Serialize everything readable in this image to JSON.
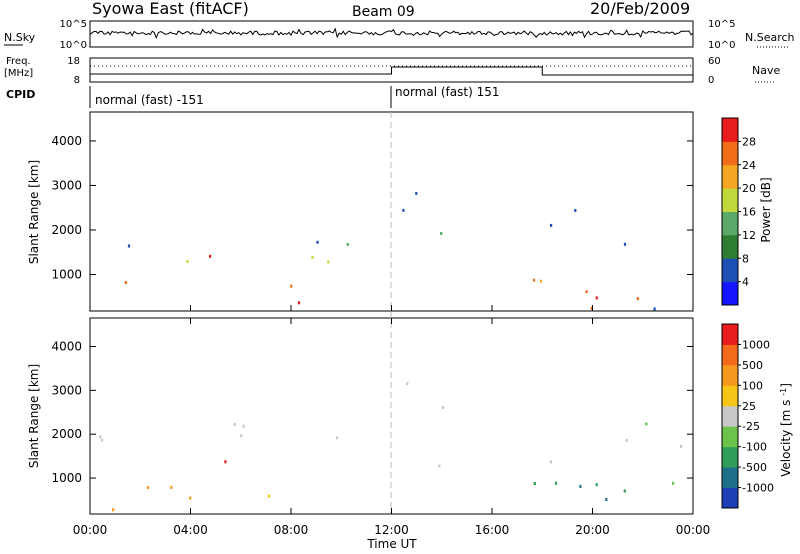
{
  "header": {
    "title": "Syowa East (fitACF)",
    "beam": "Beam 09",
    "date": "20/Feb/2009"
  },
  "panels": {
    "nsky": {
      "label": "N.Sky",
      "right_label": "N.Search",
      "ticks_left": [
        "10^5",
        "10^0"
      ],
      "ticks_right": [
        "10^5",
        "10^0"
      ]
    },
    "freq": {
      "label_line1": "Freq.",
      "label_line2": "[MHz]",
      "right_label": "Nave",
      "ticks_left": [
        "18",
        "8"
      ],
      "ticks_right": [
        "60",
        "0"
      ]
    },
    "cpid": {
      "label": "CPID",
      "segments": [
        {
          "text": "normal (fast) -151"
        },
        {
          "text": "normal (fast) 151"
        }
      ]
    }
  },
  "xaxis": {
    "label": "Time UT",
    "ticks": [
      "00:00",
      "04:00",
      "08:00",
      "12:00",
      "16:00",
      "20:00",
      "00:00"
    ]
  },
  "chart_data": [
    {
      "type": "heatmap",
      "title": "Power",
      "ylabel": "Slant Range [km]",
      "yticks": [
        1000,
        2000,
        3000,
        4000
      ],
      "ylim": [
        180,
        4650
      ],
      "xlim_hours": [
        0,
        24
      ],
      "colorbar": {
        "label": "Power [dB]",
        "ticks": [
          "4",
          "8",
          "12",
          "16",
          "20",
          "24",
          "28"
        ],
        "colors": [
          "#1414ff",
          "#1e4fb4",
          "#2e7d32",
          "#5aa86a",
          "#c0d83a",
          "#f5a623",
          "#f26d1a",
          "#e81c1c"
        ]
      },
      "scatter_regions": [
        {
          "t": [
            0.2,
            2.2
          ],
          "r": [
            1400,
            2300
          ],
          "color": 1,
          "density": 0.4
        },
        {
          "t": [
            0.0,
            8.0
          ],
          "r": [
            500,
            900
          ],
          "color": 6,
          "density": 0.7
        },
        {
          "t": [
            0.0,
            10.0
          ],
          "r": [
            250,
            450
          ],
          "color": 7,
          "density": 0.6
        },
        {
          "t": [
            1.5,
            11.5
          ],
          "r": [
            1200,
            1800
          ],
          "color": 4,
          "density": 0.6
        },
        {
          "t": [
            4.0,
            6.0
          ],
          "r": [
            800,
            1500
          ],
          "color": 7,
          "density": 0.5
        },
        {
          "t": [
            7.0,
            11.8
          ],
          "r": [
            1500,
            2100
          ],
          "color": 1,
          "density": 0.4
        },
        {
          "t": [
            12.0,
            14.5
          ],
          "r": [
            2300,
            3400
          ],
          "color": 1,
          "density": 0.5
        },
        {
          "t": [
            12.5,
            14.5
          ],
          "r": [
            2500,
            2900
          ],
          "color": 4,
          "density": 0.5
        },
        {
          "t": [
            13.0,
            15.0
          ],
          "r": [
            1200,
            2200
          ],
          "color": 3,
          "density": 0.3
        },
        {
          "t": [
            16.0,
            23.5
          ],
          "r": [
            1600,
            2600
          ],
          "color": 1,
          "density": 0.3
        },
        {
          "t": [
            17.0,
            23.8
          ],
          "r": [
            250,
            1200
          ],
          "color": 6,
          "density": 0.7
        },
        {
          "t": [
            19.0,
            23.0
          ],
          "r": [
            300,
            800
          ],
          "color": 7,
          "density": 0.6
        },
        {
          "t": [
            16.0,
            24.0
          ],
          "r": [
            180,
            350
          ],
          "color": 1,
          "density": 0.5
        }
      ]
    },
    {
      "type": "heatmap",
      "title": "Velocity",
      "ylabel": "Slant Range [km]",
      "yticks": [
        1000,
        2000,
        3000,
        4000
      ],
      "ylim": [
        180,
        4650
      ],
      "xlim_hours": [
        0,
        24
      ],
      "colorbar": {
        "label": "Velocity [m s^-1]",
        "ticks": [
          "1000",
          "500",
          "100",
          "25",
          "-25",
          "-100",
          "-500",
          "-1000"
        ],
        "colors": [
          "#1c3fb5",
          "#1f6f8b",
          "#2e9e5a",
          "#6cc24a",
          "#c8c8c8",
          "#f5c518",
          "#f59a1e",
          "#f26a1a",
          "#e81c1c"
        ]
      },
      "scatter_regions": [
        {
          "t": [
            0.2,
            11.5
          ],
          "r": [
            1400,
            2300
          ],
          "color": 4,
          "density": 0.5
        },
        {
          "t": [
            0.0,
            8.0
          ],
          "r": [
            500,
            900
          ],
          "color": 6,
          "density": 0.8
        },
        {
          "t": [
            4.0,
            6.0
          ],
          "r": [
            800,
            1500
          ],
          "color": 8,
          "density": 0.6
        },
        {
          "t": [
            5.0,
            8.0
          ],
          "r": [
            600,
            850
          ],
          "color": 5,
          "density": 0.8
        },
        {
          "t": [
            0.0,
            10.0
          ],
          "r": [
            250,
            500
          ],
          "color": 6,
          "density": 0.3
        },
        {
          "t": [
            12.0,
            14.5
          ],
          "r": [
            2300,
            3400
          ],
          "color": 4,
          "density": 0.6
        },
        {
          "t": [
            13.0,
            15.0
          ],
          "r": [
            1300,
            2200
          ],
          "color": 4,
          "density": 0.3
        },
        {
          "t": [
            16.0,
            23.5
          ],
          "r": [
            1400,
            2000
          ],
          "color": 4,
          "density": 0.5
        },
        {
          "t": [
            16.0,
            23.8
          ],
          "r": [
            300,
            1200
          ],
          "color": 2,
          "density": 0.6
        },
        {
          "t": [
            19.0,
            23.0
          ],
          "r": [
            300,
            1300
          ],
          "color": 1,
          "density": 0.5
        },
        {
          "t": [
            20.0,
            23.0
          ],
          "r": [
            1700,
            2800
          ],
          "color": 3,
          "density": 0.2
        }
      ]
    }
  ]
}
